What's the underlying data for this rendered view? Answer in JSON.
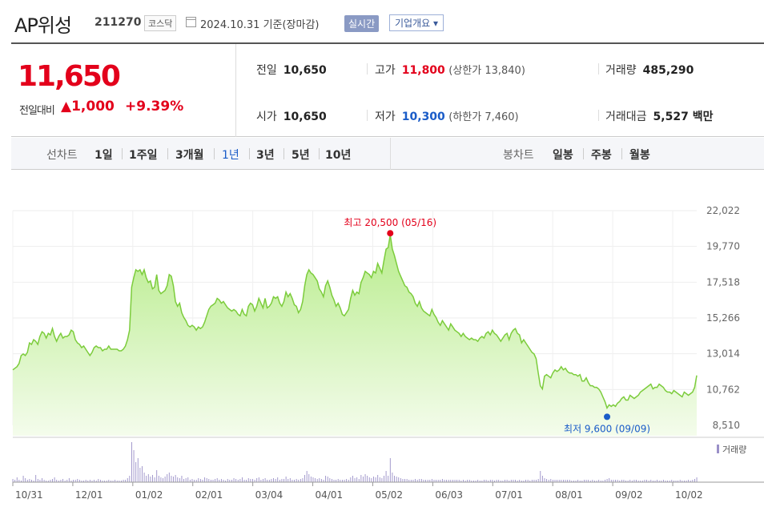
{
  "header": {
    "name": "AP위성",
    "code": "211270",
    "market": "코스닥",
    "date": "2024.10.31  기준(장마감)",
    "realtime": "실시간",
    "company_btn": "기업개요 ▾"
  },
  "quote": {
    "price": "11,650",
    "change_label": "전일대비",
    "change_value": "▲1,000",
    "change_pct": "+9.39%",
    "prev_close_label": "전일",
    "prev_close": "10,650",
    "open_label": "시가",
    "open": "10,650",
    "high_label": "고가",
    "high": "11,800",
    "upper_limit": "(상한가 13,840)",
    "low_label": "저가",
    "low": "10,300",
    "lower_limit": "(하한가 7,460)",
    "volume_label": "거래량",
    "volume": "485,290",
    "value_label": "거래대금",
    "value": "5,527 백만"
  },
  "periods": {
    "line_label": "선차트",
    "line_items": [
      "1일",
      "1주일",
      "3개월",
      "1년",
      "3년",
      "5년",
      "10년"
    ],
    "active": "1년",
    "candle_label": "봉차트",
    "candle_items": [
      "일봉",
      "주봉",
      "월봉"
    ]
  },
  "colors": {
    "up": "#e3001b",
    "down": "#1a5cc8",
    "line": "#7ccc3c",
    "fill_top": "#b8ec8c",
    "fill_bottom": "#f4fcec"
  },
  "chart_data": {
    "type": "area",
    "ylim": [
      8510,
      22022
    ],
    "yticks": [
      "22,022",
      "19,770",
      "17,518",
      "15,266",
      "13,014",
      "10,762",
      "8,510"
    ],
    "xticks": [
      "10/31",
      "12/01",
      "01/02",
      "02/01",
      "03/04",
      "04/01",
      "05/02",
      "06/03",
      "07/01",
      "08/01",
      "09/02",
      "10/02"
    ],
    "high_annotation": "최고 20,500 (05/16)",
    "low_annotation": "최저 9,600 (09/09)",
    "volume_label": "거래량",
    "series": [
      {
        "values": [
          12000,
          12100,
          12200,
          12400,
          12900,
          13000,
          12900,
          13100,
          13700,
          13600,
          13900,
          13800,
          13600,
          14100,
          14400,
          14300,
          14000,
          14300,
          14200,
          14600,
          14100,
          13800,
          14100,
          14300,
          14000,
          14100,
          14100,
          14200,
          14500,
          14400,
          13900,
          13700,
          13600,
          13400,
          13500,
          13300,
          13100,
          12900,
          13100,
          13400,
          13500,
          13400,
          13400,
          13200,
          13300,
          13300,
          13500,
          13300,
          13300,
          13300,
          13300,
          13200,
          13200,
          13300,
          13500,
          13900,
          14500,
          17200,
          17800,
          18300,
          18200,
          18300,
          18000,
          18300,
          17800,
          17500,
          17600,
          17100,
          17200,
          18000,
          17000,
          16800,
          16900,
          17000,
          17300,
          18000,
          17900,
          17300,
          16300,
          16000,
          16200,
          15600,
          15300,
          15100,
          14800,
          14700,
          14800,
          14700,
          14500,
          14700,
          14600,
          14700,
          15000,
          15400,
          15800,
          16000,
          16100,
          16200,
          16500,
          16400,
          16200,
          16300,
          16100,
          15900,
          15800,
          15700,
          15800,
          15700,
          15500,
          15400,
          15800,
          15500,
          15400,
          16000,
          16200,
          16100,
          15700,
          16000,
          16500,
          16200,
          15900,
          16500,
          15900,
          16000,
          16200,
          16600,
          16500,
          16600,
          16200,
          16000,
          16300,
          16900,
          16600,
          16800,
          16500,
          16100,
          16000,
          15600,
          15800,
          16300,
          17300,
          18000,
          18300,
          18100,
          18000,
          17800,
          17600,
          17100,
          16900,
          16600,
          17300,
          17600,
          17200,
          16700,
          16400,
          16000,
          16200,
          15900,
          15500,
          15400,
          15600,
          15800,
          16500,
          17000,
          16700,
          16900,
          16800,
          17500,
          17800,
          18200,
          18100,
          18000,
          17800,
          18200,
          18100,
          18700,
          18400,
          18100,
          18900,
          19600,
          19700,
          20500,
          19600,
          19200,
          18700,
          18200,
          17900,
          17600,
          17300,
          17200,
          16900,
          16800,
          16600,
          16200,
          16000,
          16300,
          15900,
          15700,
          15600,
          15500,
          15400,
          15800,
          15500,
          15300,
          15000,
          14800,
          15100,
          14900,
          14700,
          14500,
          14900,
          14700,
          14500,
          14400,
          14300,
          14100,
          14300,
          14100,
          14000,
          13900,
          14000,
          13900,
          13900,
          13800,
          14000,
          14100,
          14000,
          14300,
          14400,
          14200,
          14500,
          14300,
          14200,
          14000,
          13800,
          14000,
          14200,
          14300,
          13900,
          14300,
          14500,
          14600,
          14300,
          14200,
          13700,
          13900,
          13700,
          13500,
          13300,
          13100,
          13000,
          12700,
          11800,
          11000,
          10800,
          11600,
          11700,
          11600,
          11500,
          11800,
          12000,
          11900,
          12000,
          12200,
          12000,
          12100,
          11900,
          11800,
          11800,
          11700,
          11700,
          11600,
          11700,
          11300,
          11300,
          11500,
          11200,
          11000,
          11000,
          10900,
          10900,
          10800,
          10600,
          10300,
          10000,
          9600,
          9800,
          9700,
          9800,
          9700,
          9900,
          10000,
          10200,
          10300,
          10100,
          10100,
          10400,
          10300,
          10200,
          10300,
          10400,
          10600,
          10700,
          10800,
          10900,
          11000,
          11100,
          10800,
          10900,
          10900,
          11100,
          11000,
          10900,
          10700,
          10600,
          10600,
          10500,
          10700,
          10600,
          10500,
          10400,
          10300,
          10600,
          10500,
          10400,
          10500,
          10600,
          10900,
          11650
        ]
      }
    ],
    "volume": [
      4,
      3,
      6,
      3,
      2,
      8,
      5,
      3,
      4,
      3,
      2,
      9,
      4,
      3,
      5,
      3,
      2,
      2,
      3,
      4,
      6,
      3,
      2,
      3,
      4,
      2,
      3,
      5,
      2,
      3,
      3,
      4,
      3,
      2,
      2,
      3,
      2,
      3,
      2,
      3,
      2,
      4,
      3,
      2,
      2,
      2,
      3,
      2,
      2,
      3,
      2,
      2,
      2,
      3,
      3,
      5,
      8,
      50,
      40,
      25,
      30,
      18,
      20,
      12,
      8,
      10,
      7,
      9,
      6,
      15,
      8,
      6,
      5,
      7,
      10,
      12,
      8,
      7,
      9,
      6,
      5,
      8,
      4,
      5,
      6,
      3,
      4,
      3,
      3,
      5,
      4,
      3,
      6,
      5,
      4,
      3,
      3,
      4,
      5,
      3,
      4,
      3,
      2,
      4,
      3,
      3,
      5,
      4,
      3,
      4,
      6,
      3,
      3,
      5,
      4,
      4,
      3,
      5,
      6,
      3,
      4,
      5,
      3,
      3,
      4,
      5,
      4,
      6,
      3,
      4,
      4,
      7,
      4,
      5,
      3,
      3,
      4,
      3,
      4,
      5,
      9,
      14,
      10,
      7,
      6,
      5,
      4,
      5,
      4,
      3,
      8,
      7,
      5,
      4,
      3,
      3,
      4,
      3,
      3,
      3,
      4,
      3,
      6,
      8,
      5,
      6,
      4,
      9,
      7,
      10,
      8,
      6,
      5,
      7,
      6,
      9,
      6,
      5,
      8,
      14,
      8,
      30,
      12,
      8,
      7,
      6,
      5,
      4,
      4,
      4,
      3,
      3,
      3,
      4,
      3,
      4,
      4,
      3,
      3,
      3,
      3,
      4,
      3,
      3,
      3,
      3,
      4,
      3,
      3,
      3,
      3,
      3,
      3,
      3,
      3,
      2,
      3,
      2,
      3,
      3,
      2,
      2,
      2,
      3,
      2,
      2,
      3,
      3,
      2,
      3,
      3,
      2,
      3,
      3,
      2,
      2,
      3,
      3,
      2,
      3,
      3,
      3,
      2,
      3,
      2,
      2,
      3,
      3,
      2,
      3,
      3,
      3,
      4,
      14,
      8,
      5,
      4,
      3,
      4,
      3,
      3,
      3,
      3,
      3,
      3,
      3,
      3,
      3,
      2,
      2,
      2,
      3,
      2,
      2,
      3,
      3,
      3,
      2,
      3,
      2,
      2,
      3,
      2,
      2,
      3,
      4,
      5,
      3,
      3,
      3,
      3,
      2,
      3,
      3,
      2,
      2,
      3,
      2,
      3,
      3,
      2,
      2,
      2,
      3,
      3,
      2,
      3,
      2,
      2,
      3,
      2,
      2,
      3,
      2,
      2,
      2,
      3,
      2,
      2,
      2,
      3,
      2,
      2,
      2,
      3,
      2,
      3,
      4,
      6
    ]
  }
}
